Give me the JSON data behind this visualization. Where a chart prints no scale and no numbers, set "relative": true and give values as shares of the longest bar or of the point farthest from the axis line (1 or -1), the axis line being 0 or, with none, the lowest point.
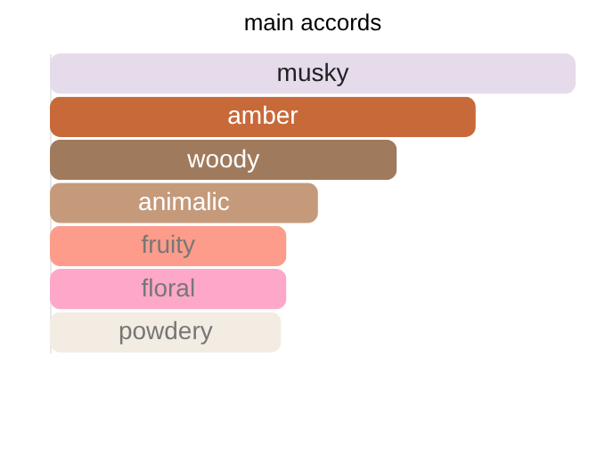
{
  "chart_data": {
    "type": "bar",
    "orientation": "horizontal",
    "relative": true,
    "title": "main accords",
    "categories": [
      "musky",
      "amber",
      "woody",
      "animalic",
      "fruity",
      "floral",
      "powdery"
    ],
    "values": [
      1,
      0.81,
      0.66,
      0.51,
      0.45,
      0.45,
      0.44
    ],
    "colors": [
      "#e6dbeb",
      "#c8693a",
      "#a07a5c",
      "#c49a7a",
      "#fd9c8a",
      "#fda8c8",
      "#f3ece3"
    ]
  }
}
